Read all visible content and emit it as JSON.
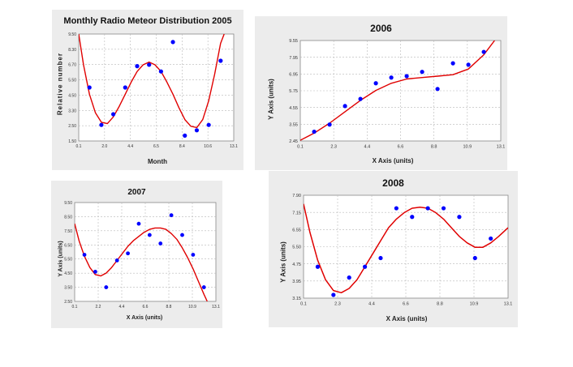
{
  "chart_data": [
    {
      "type": "scatter",
      "title": "Monthly Radio Meteor Distribution  2005",
      "xlabel": "Month",
      "ylabel": "Relative number",
      "xlim": [
        0.1,
        13.1
      ],
      "ylim": [
        1.5,
        9.5
      ],
      "xticks": [
        "0.1",
        "2.0",
        "4.4",
        "6.5",
        "8.4",
        "10.6",
        "13.1"
      ],
      "yticks": [
        "9.50",
        "8.30",
        "6.70",
        "5.50",
        "4.50",
        "3.30",
        "2.50",
        "1.50"
      ],
      "grid": true,
      "points": [
        [
          1,
          5.5
        ],
        [
          2,
          2.7
        ],
        [
          3,
          3.5
        ],
        [
          4,
          5.5
        ],
        [
          5,
          7.1
        ],
        [
          6,
          7.2
        ],
        [
          7,
          6.7
        ],
        [
          8,
          8.9
        ],
        [
          9,
          1.9
        ],
        [
          10,
          2.3
        ],
        [
          11,
          2.7
        ],
        [
          12,
          7.5
        ]
      ],
      "fit": [
        [
          0.1,
          9.5
        ],
        [
          0.5,
          7.2
        ],
        [
          1,
          5.0
        ],
        [
          1.5,
          3.6
        ],
        [
          2,
          2.9
        ],
        [
          2.5,
          2.8
        ],
        [
          3,
          3.3
        ],
        [
          3.5,
          4.1
        ],
        [
          4,
          5.0
        ],
        [
          4.5,
          5.9
        ],
        [
          5,
          6.7
        ],
        [
          5.5,
          7.2
        ],
        [
          6,
          7.4
        ],
        [
          6.5,
          7.2
        ],
        [
          7,
          6.7
        ],
        [
          7.5,
          5.9
        ],
        [
          8,
          5.0
        ],
        [
          8.5,
          4.0
        ],
        [
          9,
          3.1
        ],
        [
          9.5,
          2.6
        ],
        [
          10,
          2.5
        ],
        [
          10.5,
          3.1
        ],
        [
          11,
          4.5
        ],
        [
          11.5,
          6.5
        ],
        [
          12,
          8.8
        ],
        [
          12.3,
          9.5
        ]
      ]
    },
    {
      "type": "scatter",
      "title": "2006",
      "xlabel": "X Axis (units)",
      "ylabel": "Y Axis (units)",
      "xlim": [
        0.1,
        13.1
      ],
      "ylim": [
        2.45,
        9.5
      ],
      "xticks": [
        "0.1",
        "2.3",
        "4.4",
        "6.6",
        "8.8",
        "10.9",
        "13.1"
      ],
      "yticks": [
        "9.55",
        "7.95",
        "6.95",
        "5.75",
        "4.55",
        "3.55",
        "2.45"
      ],
      "grid": true,
      "points": [
        [
          1,
          3.1
        ],
        [
          2,
          3.6
        ],
        [
          3,
          4.9
        ],
        [
          4,
          5.4
        ],
        [
          5,
          6.5
        ],
        [
          6,
          6.9
        ],
        [
          7,
          7.0
        ],
        [
          8,
          7.3
        ],
        [
          9,
          6.1
        ],
        [
          10,
          7.9
        ],
        [
          11,
          7.8
        ],
        [
          12,
          8.7
        ]
      ],
      "fit": [
        [
          0.1,
          2.5
        ],
        [
          1,
          3.0
        ],
        [
          2,
          3.7
        ],
        [
          3,
          4.5
        ],
        [
          4,
          5.3
        ],
        [
          5,
          6.0
        ],
        [
          6,
          6.5
        ],
        [
          7,
          6.8
        ],
        [
          8,
          6.9
        ],
        [
          9,
          7.0
        ],
        [
          10,
          7.1
        ],
        [
          11,
          7.5
        ],
        [
          12,
          8.5
        ],
        [
          12.7,
          9.5
        ]
      ]
    },
    {
      "type": "scatter",
      "title": "2007",
      "xlabel": "X Axis (units)",
      "ylabel": "Y Axis (units)",
      "xlim": [
        0.1,
        13.1
      ],
      "ylim": [
        2.5,
        9.5
      ],
      "xticks": [
        "0.1",
        "2.2",
        "4.4",
        "6.6",
        "8.8",
        "10.9",
        "13.1"
      ],
      "yticks": [
        "9.50",
        "8.50",
        "7.50",
        "6.50",
        "5.50",
        "4.50",
        "3.50",
        "2.50"
      ],
      "grid": true,
      "points": [
        [
          1,
          5.8
        ],
        [
          2,
          4.6
        ],
        [
          3,
          3.5
        ],
        [
          4,
          5.4
        ],
        [
          5,
          5.9
        ],
        [
          6,
          8.0
        ],
        [
          7,
          7.2
        ],
        [
          8,
          6.6
        ],
        [
          9,
          8.6
        ],
        [
          10,
          7.2
        ],
        [
          11,
          5.8
        ],
        [
          12,
          3.5
        ]
      ],
      "fit": [
        [
          0.1,
          8.0
        ],
        [
          0.5,
          6.8
        ],
        [
          1,
          5.7
        ],
        [
          1.5,
          4.9
        ],
        [
          2,
          4.4
        ],
        [
          2.5,
          4.3
        ],
        [
          3,
          4.5
        ],
        [
          3.5,
          4.9
        ],
        [
          4,
          5.4
        ],
        [
          4.5,
          5.9
        ],
        [
          5,
          6.4
        ],
        [
          5.5,
          6.8
        ],
        [
          6,
          7.1
        ],
        [
          6.5,
          7.4
        ],
        [
          7,
          7.6
        ],
        [
          7.5,
          7.7
        ],
        [
          8,
          7.7
        ],
        [
          8.5,
          7.6
        ],
        [
          9,
          7.3
        ],
        [
          9.5,
          6.9
        ],
        [
          10,
          6.3
        ],
        [
          10.5,
          5.6
        ],
        [
          11,
          4.8
        ],
        [
          11.5,
          3.9
        ],
        [
          12,
          3.0
        ],
        [
          12.3,
          2.5
        ]
      ]
    },
    {
      "type": "scatter",
      "title": "2008",
      "xlabel": "X Axis (units)",
      "ylabel": "Y Axis (units)",
      "xlim": [
        0.1,
        13.1
      ],
      "ylim": [
        3.15,
        7.9
      ],
      "xticks": [
        "0.1",
        "2.3",
        "4.4",
        "6.6",
        "8.8",
        "10.9",
        "13.1"
      ],
      "yticks": [
        "7.90",
        "7.15",
        "6.55",
        "5.50",
        "4.75",
        "3.95",
        "3.15"
      ],
      "grid": true,
      "points": [
        [
          1,
          4.6
        ],
        [
          2,
          3.3
        ],
        [
          3,
          4.1
        ],
        [
          4,
          4.6
        ],
        [
          5,
          5.0
        ],
        [
          6,
          7.3
        ],
        [
          7,
          6.9
        ],
        [
          8,
          7.3
        ],
        [
          9,
          7.3
        ],
        [
          10,
          6.9
        ],
        [
          11,
          5.0
        ],
        [
          12,
          5.9
        ]
      ],
      "fit": [
        [
          0.1,
          7.5
        ],
        [
          0.5,
          6.2
        ],
        [
          1,
          4.9
        ],
        [
          1.5,
          4.0
        ],
        [
          2,
          3.5
        ],
        [
          2.5,
          3.4
        ],
        [
          3,
          3.6
        ],
        [
          3.5,
          4.0
        ],
        [
          4,
          4.6
        ],
        [
          4.5,
          5.2
        ],
        [
          5,
          5.8
        ],
        [
          5.5,
          6.4
        ],
        [
          6,
          6.8
        ],
        [
          6.5,
          7.1
        ],
        [
          7,
          7.3
        ],
        [
          7.5,
          7.35
        ],
        [
          8,
          7.3
        ],
        [
          8.5,
          7.1
        ],
        [
          9,
          6.8
        ],
        [
          9.5,
          6.4
        ],
        [
          10,
          6.0
        ],
        [
          10.5,
          5.7
        ],
        [
          11,
          5.5
        ],
        [
          11.5,
          5.5
        ],
        [
          12,
          5.7
        ],
        [
          12.5,
          6.0
        ],
        [
          13.1,
          6.4
        ]
      ]
    }
  ],
  "colors": {
    "point": "#0000ff",
    "fit": "#e00000",
    "grid": "#b8b8b8",
    "panel": "#ececec",
    "plot": "#ffffff"
  }
}
